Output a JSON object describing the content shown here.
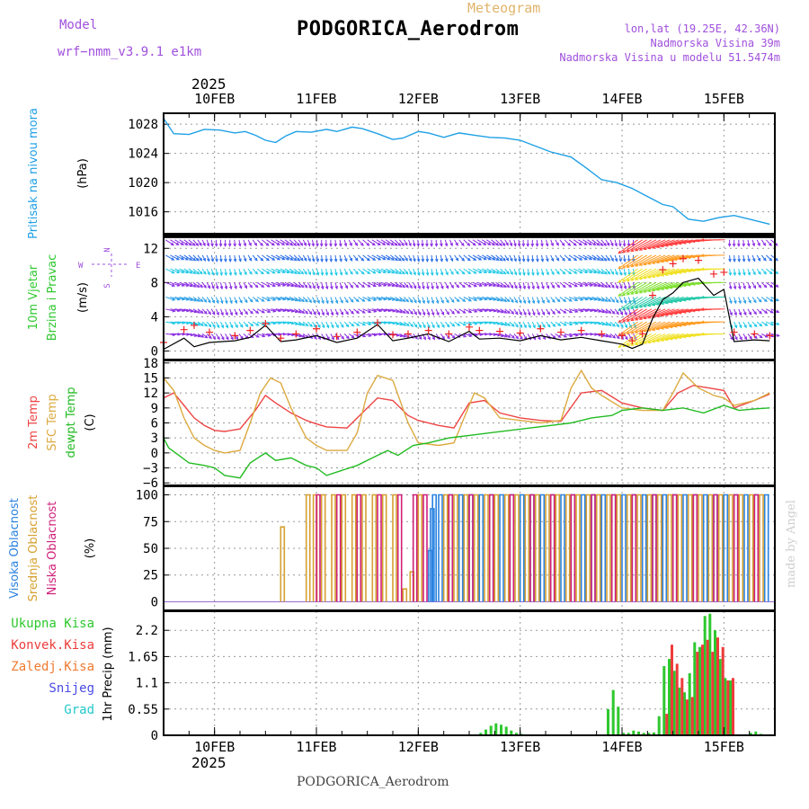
{
  "header": {
    "model_label": "Model",
    "model_name": "wrf−nmm_v3.9.1 e1km",
    "product": "Meteogram",
    "station": "PODGORICA_Aerodrom",
    "lonlat": "lon,lat (19.25E, 42.36N)",
    "elevation": "Nadmorska Visina 39m",
    "model_elevation": "Nadmorska Visina u modelu 51.5474m",
    "watermark": "made by Angel",
    "footer_station": "PODGORICA_Aerodrom",
    "year": "2025"
  },
  "colors": {
    "pressure": "#1ea0e6",
    "temp2m": "#ee4444",
    "sfc": "#dcaa40",
    "dewpt": "#22bb22",
    "cloud_high": "#2a82e0",
    "cloud_mid": "#d6a030",
    "cloud_low": "#d0207a",
    "precip_total": "#2ec82e",
    "precip_conv": "#ee3b3b",
    "wind_speed_line": "#000000",
    "gust_marks": "#ee2222"
  },
  "chart_data": [
    {
      "panel": "pressure",
      "type": "line",
      "ylabel": [
        "Pritisak na nivou mora",
        "(hPa)"
      ],
      "ylim": [
        1013,
        1029.5
      ],
      "yticks": [
        1016,
        1020,
        1024,
        1028
      ],
      "grid": true,
      "x_unit": "days since 10FEB 00Z",
      "x": [
        -0.5,
        -0.4,
        -0.25,
        -0.1,
        0.05,
        0.2,
        0.3,
        0.4,
        0.5,
        0.6,
        0.7,
        0.8,
        0.95,
        1.1,
        1.2,
        1.35,
        1.45,
        1.6,
        1.75,
        1.85,
        2.0,
        2.1,
        2.25,
        2.4,
        2.55,
        2.7,
        2.85,
        3.0,
        3.15,
        3.3,
        3.5,
        3.65,
        3.8,
        3.95,
        4.1,
        4.25,
        4.4,
        4.5,
        4.65,
        4.8,
        4.95,
        5.1,
        5.25,
        5.45
      ],
      "values": [
        1028.8,
        1026.7,
        1026.6,
        1027.3,
        1027.2,
        1026.8,
        1027.0,
        1026.5,
        1025.8,
        1025.5,
        1026.4,
        1027.0,
        1026.9,
        1027.3,
        1027.0,
        1027.6,
        1027.4,
        1026.7,
        1025.9,
        1026.1,
        1027.0,
        1026.8,
        1026.2,
        1026.8,
        1026.5,
        1026.2,
        1026.1,
        1025.8,
        1025.0,
        1024.2,
        1023.5,
        1022.0,
        1020.4,
        1020.0,
        1019.2,
        1018.1,
        1017.0,
        1016.7,
        1015.0,
        1014.7,
        1015.2,
        1015.5,
        1015.0,
        1014.3
      ]
    },
    {
      "panel": "wind",
      "type": "line",
      "ylabel": [
        "10m Vjetar",
        "Brzina i Pravac",
        "(m/s)"
      ],
      "compass_label": "W <-·-> E",
      "compass_vertical": "N <-·-> S",
      "ylim": [
        -1,
        13.5
      ],
      "yticks": [
        0,
        4,
        8,
        12
      ],
      "grid": true,
      "x_unit": "days since 10FEB 00Z",
      "x": [
        -0.5,
        -0.3,
        -0.2,
        -0.05,
        0.2,
        0.35,
        0.5,
        0.65,
        0.8,
        1.0,
        1.2,
        1.4,
        1.6,
        1.75,
        1.9,
        2.1,
        2.3,
        2.5,
        2.6,
        2.8,
        3.0,
        3.2,
        3.4,
        3.6,
        3.8,
        4.0,
        4.1,
        4.2,
        4.3,
        4.4,
        4.5,
        4.6,
        4.75,
        4.9,
        5.0,
        5.1,
        5.3,
        5.45
      ],
      "values": [
        0.2,
        1.5,
        0.5,
        1.0,
        1.2,
        1.6,
        3.0,
        1.1,
        1.3,
        1.8,
        1.0,
        1.5,
        3.1,
        1.2,
        1.5,
        2.0,
        1.1,
        2.3,
        1.4,
        1.5,
        1.2,
        1.8,
        1.3,
        1.6,
        1.2,
        0.8,
        0.3,
        0.8,
        3.8,
        6.0,
        6.8,
        8.0,
        8.5,
        6.5,
        7.2,
        1.1,
        1.3,
        1.2
      ],
      "gust_values": [
        1.0,
        2.5,
        3.0,
        2.2,
        1.8,
        2.4,
        3.2,
        1.5,
        2.0,
        2.6,
        1.7,
        2.2,
        3.3,
        1.9,
        2.0,
        2.4,
        2.0,
        2.8,
        2.4,
        2.3,
        2.1,
        2.6,
        2.2,
        2.4,
        2.0,
        1.8,
        1.2,
        2.0,
        6.5,
        9.5,
        10.2,
        10.8,
        10.6,
        9.0,
        9.2,
        2.2,
        2.0,
        1.8
      ]
    },
    {
      "panel": "temperature",
      "type": "line",
      "ylabel": [
        "2m Temp",
        "SFC Temp",
        "dewpt Temp",
        "(C)"
      ],
      "ylim": [
        -6.5,
        18.5
      ],
      "yticks": [
        -6,
        -3,
        0,
        3,
        6,
        9,
        12,
        15,
        18
      ],
      "grid": true,
      "x_unit": "days since 10FEB 00Z",
      "series": [
        {
          "name": "2m Temp",
          "x": [
            -0.5,
            -0.4,
            -0.3,
            -0.2,
            -0.1,
            0.0,
            0.1,
            0.25,
            0.4,
            0.5,
            0.6,
            0.75,
            0.9,
            1.0,
            1.1,
            1.3,
            1.45,
            1.6,
            1.75,
            1.9,
            2.0,
            2.2,
            2.35,
            2.5,
            2.65,
            2.8,
            3.0,
            3.2,
            3.4,
            3.6,
            3.8,
            4.0,
            4.2,
            4.4,
            4.55,
            4.7,
            4.85,
            5.0,
            5.1,
            5.3,
            5.45
          ],
          "values": [
            11.0,
            12.0,
            9.5,
            7.0,
            5.5,
            4.5,
            4.3,
            4.8,
            8.5,
            11.5,
            10.0,
            8.0,
            6.5,
            5.8,
            5.2,
            5.0,
            8.0,
            11.0,
            10.5,
            7.5,
            6.5,
            5.5,
            5.0,
            10.0,
            10.5,
            8.0,
            7.0,
            6.5,
            6.3,
            12.0,
            12.5,
            10.0,
            9.0,
            8.5,
            12.0,
            13.5,
            13.0,
            12.5,
            9.0,
            10.5,
            11.8
          ]
        },
        {
          "name": "SFC Temp",
          "x": [
            -0.5,
            -0.4,
            -0.3,
            -0.2,
            -0.1,
            0.0,
            0.1,
            0.25,
            0.35,
            0.45,
            0.55,
            0.65,
            0.75,
            0.9,
            1.0,
            1.1,
            1.3,
            1.4,
            1.5,
            1.6,
            1.75,
            1.9,
            2.0,
            2.2,
            2.35,
            2.45,
            2.55,
            2.65,
            2.8,
            3.0,
            3.2,
            3.4,
            3.5,
            3.6,
            3.7,
            3.8,
            4.0,
            4.2,
            4.4,
            4.5,
            4.6,
            4.75,
            4.9,
            5.0,
            5.1,
            5.3,
            5.45
          ],
          "values": [
            15.0,
            12.5,
            7.0,
            3.0,
            1.5,
            0.5,
            0.0,
            0.5,
            6.0,
            12.0,
            15.0,
            14.0,
            9.0,
            3.0,
            1.5,
            0.5,
            0.5,
            4.0,
            12.0,
            15.5,
            14.5,
            6.0,
            2.0,
            1.5,
            2.0,
            7.0,
            12.0,
            11.0,
            7.0,
            6.5,
            6.0,
            6.5,
            13.0,
            16.5,
            13.0,
            11.5,
            9.0,
            8.5,
            8.5,
            12.0,
            16.0,
            13.0,
            11.5,
            11.0,
            9.5,
            10.5,
            12.0
          ]
        },
        {
          "name": "dewpt Temp",
          "x": [
            -0.5,
            -0.45,
            -0.35,
            -0.25,
            -0.1,
            0.0,
            0.1,
            0.25,
            0.35,
            0.5,
            0.6,
            0.75,
            0.9,
            1.0,
            1.1,
            1.25,
            1.4,
            1.55,
            1.7,
            1.8,
            1.95,
            2.1,
            2.3,
            2.5,
            2.7,
            2.9,
            3.1,
            3.3,
            3.5,
            3.7,
            3.9,
            4.0,
            4.2,
            4.4,
            4.6,
            4.8,
            5.0,
            5.15,
            5.3,
            5.45
          ],
          "values": [
            3.0,
            1.0,
            -0.5,
            -2.0,
            -2.5,
            -3.0,
            -4.5,
            -5.0,
            -2.0,
            0.0,
            -1.5,
            -1.0,
            -2.5,
            -3.0,
            -4.5,
            -3.5,
            -2.5,
            -1.0,
            0.5,
            -0.5,
            1.5,
            2.0,
            3.0,
            3.5,
            4.0,
            4.5,
            5.0,
            5.5,
            6.0,
            7.0,
            7.5,
            8.5,
            9.0,
            8.5,
            9.0,
            8.0,
            9.5,
            8.5,
            8.8,
            9.0
          ]
        }
      ]
    },
    {
      "panel": "cloud",
      "type": "bar",
      "ylabel": [
        "Visoka Oblacnost",
        "Srednja Oblacnost",
        "Niska Oblacnost",
        "(%)"
      ],
      "ylim": [
        -8,
        108
      ],
      "yticks": [
        0,
        25,
        50,
        75,
        100
      ],
      "grid": true,
      "x_unit": "days since 10FEB 00Z",
      "series": [
        {
          "name": "Visoka Oblacnost",
          "x": [
            2.1,
            2.12,
            2.14,
            2.2,
            2.3,
            2.4,
            2.5,
            2.6,
            2.7,
            2.8,
            2.9,
            3.0,
            3.1,
            3.2,
            3.3,
            3.4,
            3.5,
            3.6,
            3.7,
            3.8,
            3.9,
            4.0,
            4.1,
            4.2,
            4.3,
            4.4,
            4.5,
            4.6,
            4.7,
            4.8,
            4.9,
            5.0,
            5.1,
            5.2,
            5.3,
            5.4
          ],
          "values": [
            48,
            87,
            100,
            100,
            100,
            100,
            100,
            100,
            100,
            100,
            100,
            100,
            100,
            100,
            100,
            100,
            100,
            100,
            100,
            100,
            100,
            100,
            100,
            100,
            100,
            100,
            100,
            100,
            100,
            100,
            100,
            100,
            100,
            100,
            100,
            100
          ]
        },
        {
          "name": "Srednja Oblacnost",
          "x": [
            0.65,
            0.9,
            0.97,
            1.05,
            1.15,
            1.25,
            1.35,
            1.45,
            1.55,
            1.65,
            1.75,
            1.85,
            1.92,
            2.0,
            2.25,
            2.35,
            2.45,
            2.55,
            2.65,
            2.75,
            2.85,
            2.95,
            3.05,
            3.15,
            3.25,
            3.35,
            3.45,
            3.55,
            3.65,
            3.75,
            3.85,
            3.95,
            4.05,
            4.15,
            4.25,
            4.35,
            4.45,
            4.55,
            4.65,
            4.75,
            4.85,
            4.95,
            5.05,
            5.15,
            5.25,
            5.35
          ],
          "values": [
            70,
            100,
            100,
            100,
            100,
            100,
            100,
            100,
            100,
            100,
            100,
            12,
            28,
            100,
            100,
            100,
            100,
            100,
            100,
            100,
            100,
            100,
            100,
            100,
            100,
            100,
            100,
            100,
            100,
            100,
            100,
            100,
            100,
            100,
            100,
            100,
            100,
            100,
            100,
            100,
            100,
            100,
            100,
            100,
            100,
            100
          ]
        },
        {
          "name": "Niska Oblacnost",
          "x": [
            1.0,
            1.2,
            1.4,
            1.6,
            1.8,
            1.95,
            2.05,
            2.3,
            2.5,
            2.7,
            2.9,
            3.1,
            3.3,
            3.5,
            3.7,
            3.9,
            4.1,
            4.3,
            4.5,
            4.7,
            4.9,
            5.1,
            5.3
          ],
          "values": [
            100,
            100,
            100,
            100,
            100,
            100,
            100,
            100,
            100,
            100,
            100,
            100,
            100,
            100,
            100,
            100,
            100,
            100,
            100,
            100,
            100,
            100,
            100
          ]
        }
      ]
    },
    {
      "panel": "precip",
      "type": "bar",
      "ylabel": [
        "1hr Precip",
        "(mm)"
      ],
      "legend": [
        "Ukupna Kisa",
        "Konvek.Kisa",
        "Zaledj.Kisa",
        "Snijeg",
        "Grad"
      ],
      "ylim": [
        0,
        2.6
      ],
      "yticks": [
        0,
        0.55,
        1.1,
        1.65,
        2.2
      ],
      "ytick_labels": [
        "0",
        "0.55",
        "1.1",
        "1.65",
        "2.2"
      ],
      "grid": true,
      "x_unit": "days since 10FEB 00Z",
      "series": [
        {
          "name": "Ukupna Kisa",
          "x": [
            2.55,
            2.6,
            2.65,
            2.7,
            2.75,
            2.8,
            2.85,
            2.9,
            2.95,
            3.0,
            3.05,
            3.85,
            3.9,
            3.95,
            4.0,
            4.05,
            4.1,
            4.15,
            4.2,
            4.25,
            4.3,
            4.35,
            4.4,
            4.45,
            4.5,
            4.55,
            4.6,
            4.65,
            4.7,
            4.75,
            4.8,
            4.85,
            4.9,
            4.95,
            5.0,
            5.05,
            5.1,
            5.2,
            5.25,
            5.3,
            5.35
          ],
          "values": [
            0.02,
            0.05,
            0.12,
            0.2,
            0.25,
            0.22,
            0.18,
            0.1,
            0.05,
            0.03,
            0.01,
            0.55,
            0.95,
            0.6,
            0.05,
            0.05,
            0.1,
            0.08,
            0.05,
            0.05,
            0.06,
            0.4,
            1.45,
            1.6,
            1.35,
            1.0,
            0.9,
            1.3,
            1.95,
            1.85,
            2.5,
            2.55,
            2.2,
            1.6,
            1.2,
            1.15,
            0.02,
            0.02,
            0.05,
            0.08,
            0.03
          ]
        },
        {
          "name": "Konvek.Kisa",
          "x": [
            4.4,
            4.45,
            4.5,
            4.55,
            4.6,
            4.65,
            4.7,
            4.75,
            4.8,
            4.85,
            4.9,
            4.95,
            5.0,
            5.05
          ],
          "values": [
            0.45,
            1.9,
            1.5,
            1.2,
            0.75,
            0.8,
            1.75,
            1.9,
            2.0,
            1.75,
            2.05,
            1.85,
            1.15,
            1.2
          ]
        }
      ]
    }
  ],
  "x_axis": {
    "day_ticks": [
      0,
      1,
      2,
      3,
      4,
      5
    ],
    "day_labels": [
      "10FEB",
      "11FEB",
      "12FEB",
      "13FEB",
      "14FEB",
      "15FEB"
    ],
    "minor_tick_step": 0.25,
    "xlim": [
      -0.5,
      5.5
    ]
  }
}
